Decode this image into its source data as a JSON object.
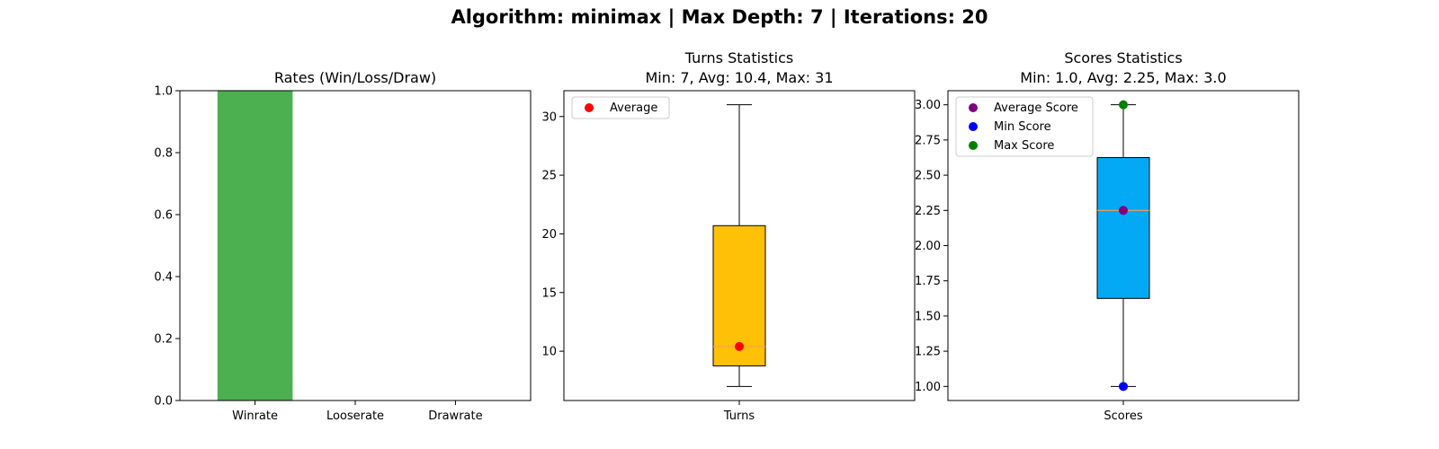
{
  "suptitle": "Algorithm: minimax | Max Depth: 7 | Iterations: 20",
  "chart_data": [
    {
      "type": "bar",
      "title": "Rates (Win/Loss/Draw)",
      "xlabel": "",
      "ylabel": "",
      "categories": [
        "Winrate",
        "Looserate",
        "Drawrate"
      ],
      "values": [
        1.0,
        0.0,
        0.0
      ],
      "ylim": [
        0,
        1.0
      ],
      "yticks": [
        0.0,
        0.2,
        0.4,
        0.6,
        0.8,
        1.0
      ],
      "ytick_labels": [
        "0.0",
        "0.2",
        "0.4",
        "0.6",
        "0.8",
        "1.0"
      ],
      "bar_color": "#4caf50",
      "grid": false
    },
    {
      "type": "box",
      "title_lines": [
        "Turns Statistics",
        "Min: 7, Avg: 10.4, Max: 31"
      ],
      "xlabel": "",
      "ylabel": "",
      "categories": [
        "Turns"
      ],
      "box": {
        "whisker_low": 7,
        "q1": 8.75,
        "median": 10.4,
        "q3": 20.7,
        "whisker_high": 31
      },
      "points": [
        {
          "name": "Average",
          "value": 10.4,
          "color": "#ff0000"
        }
      ],
      "ylim": [
        5.8,
        32.2
      ],
      "yticks": [
        10,
        15,
        20,
        25,
        30
      ],
      "ytick_labels": [
        "10",
        "15",
        "20",
        "25",
        "30"
      ],
      "box_color": "#ffc107",
      "median_color": "#ff9e4a",
      "legend": {
        "placement": "upper-left",
        "entries": [
          {
            "label": "Average",
            "color": "#ff0000"
          }
        ]
      },
      "grid": false
    },
    {
      "type": "box",
      "title_lines": [
        "Scores Statistics",
        "Min: 1.0, Avg: 2.25, Max: 3.0"
      ],
      "xlabel": "",
      "ylabel": "",
      "categories": [
        "Scores"
      ],
      "box": {
        "whisker_low": 1.0,
        "q1": 1.625,
        "median": 2.25,
        "q3": 2.625,
        "whisker_high": 3.0
      },
      "points": [
        {
          "name": "Average Score",
          "value": 2.25,
          "color": "#800080"
        },
        {
          "name": "Min Score",
          "value": 1.0,
          "color": "#0000ff"
        },
        {
          "name": "Max Score",
          "value": 3.0,
          "color": "#008000"
        }
      ],
      "ylim": [
        0.9,
        3.1
      ],
      "yticks": [
        1.0,
        1.25,
        1.5,
        1.75,
        2.0,
        2.25,
        2.5,
        2.75,
        3.0
      ],
      "ytick_labels": [
        "1.00",
        "1.25",
        "1.50",
        "1.75",
        "2.00",
        "2.25",
        "2.50",
        "2.75",
        "3.00"
      ],
      "box_color": "#03a9f4",
      "median_color": "#ff9e4a",
      "legend": {
        "placement": "upper-left",
        "entries": [
          {
            "label": "Average Score",
            "color": "#800080"
          },
          {
            "label": "Min Score",
            "color": "#0000ff"
          },
          {
            "label": "Max Score",
            "color": "#008000"
          }
        ]
      },
      "grid": false
    }
  ]
}
